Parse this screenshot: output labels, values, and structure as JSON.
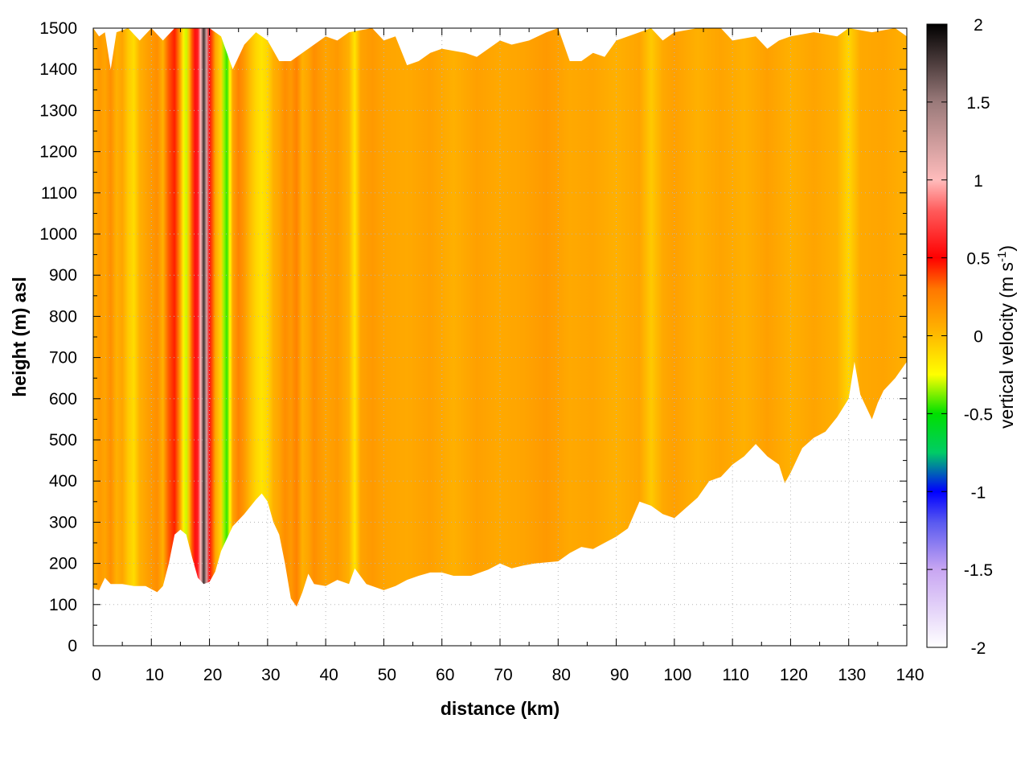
{
  "chart_data": {
    "type": "heatmap",
    "title": "",
    "xlabel": "distance (km)",
    "ylabel": "height (m) asl",
    "xlim": [
      0,
      140
    ],
    "ylim": [
      0,
      1500
    ],
    "x_ticks": [
      "0",
      "10",
      "20",
      "30",
      "40",
      "50",
      "60",
      "70",
      "80",
      "90",
      "100",
      "110",
      "120",
      "130",
      "140"
    ],
    "y_ticks": [
      "0",
      "100",
      "200",
      "300",
      "400",
      "500",
      "600",
      "700",
      "800",
      "900",
      "1000",
      "1100",
      "1200",
      "1300",
      "1400",
      "1500"
    ],
    "grid": true,
    "colorbar": {
      "label_main": "vertical velocity (m s",
      "label_exp": "-1",
      "label_close": ")",
      "range": [
        -2,
        2
      ],
      "ticks": [
        "2",
        "1.5",
        "1",
        "0.5",
        "0",
        "-0.5",
        "-1",
        "-1.5",
        "-2"
      ],
      "colors": [
        {
          "v": -2.0,
          "c": "#ffffff"
        },
        {
          "v": -1.5,
          "c": "#c8a6f2"
        },
        {
          "v": -1.2,
          "c": "#5a5af0"
        },
        {
          "v": -1.0,
          "c": "#0000ff"
        },
        {
          "v": -0.75,
          "c": "#00cc66"
        },
        {
          "v": -0.5,
          "c": "#00e000"
        },
        {
          "v": -0.25,
          "c": "#ffff00"
        },
        {
          "v": 0.0,
          "c": "#ffbb00"
        },
        {
          "v": 0.3,
          "c": "#ff7700"
        },
        {
          "v": 0.5,
          "c": "#ff0000"
        },
        {
          "v": 0.8,
          "c": "#ff5a5a"
        },
        {
          "v": 1.0,
          "c": "#ffbcbc"
        },
        {
          "v": 1.5,
          "c": "#9a7a7a"
        },
        {
          "v": 2.0,
          "c": "#000000"
        }
      ]
    },
    "field": {
      "lower_boundary": [
        [
          0,
          140
        ],
        [
          1,
          135
        ],
        [
          2,
          165
        ],
        [
          3,
          150
        ],
        [
          5,
          150
        ],
        [
          7,
          145
        ],
        [
          9,
          145
        ],
        [
          11,
          130
        ],
        [
          12,
          145
        ],
        [
          13,
          200
        ],
        [
          14,
          270
        ],
        [
          15,
          282
        ],
        [
          16,
          270
        ],
        [
          17,
          215
        ],
        [
          18,
          165
        ],
        [
          19,
          150
        ],
        [
          20,
          155
        ],
        [
          21,
          180
        ],
        [
          22,
          230
        ],
        [
          24,
          290
        ],
        [
          26,
          320
        ],
        [
          28,
          355
        ],
        [
          29,
          370
        ],
        [
          30,
          350
        ],
        [
          31,
          300
        ],
        [
          32,
          270
        ],
        [
          33,
          200
        ],
        [
          34,
          115
        ],
        [
          35,
          95
        ],
        [
          36,
          130
        ],
        [
          37,
          175
        ],
        [
          38,
          150
        ],
        [
          40,
          145
        ],
        [
          42,
          160
        ],
        [
          44,
          150
        ],
        [
          45,
          188
        ],
        [
          47,
          150
        ],
        [
          50,
          135
        ],
        [
          52,
          145
        ],
        [
          54,
          160
        ],
        [
          56,
          170
        ],
        [
          58,
          178
        ],
        [
          60,
          178
        ],
        [
          62,
          170
        ],
        [
          65,
          170
        ],
        [
          68,
          185
        ],
        [
          70,
          200
        ],
        [
          72,
          188
        ],
        [
          74,
          195
        ],
        [
          76,
          200
        ],
        [
          80,
          205
        ],
        [
          82,
          225
        ],
        [
          84,
          240
        ],
        [
          86,
          235
        ],
        [
          88,
          250
        ],
        [
          90,
          265
        ],
        [
          92,
          285
        ],
        [
          94,
          350
        ],
        [
          96,
          340
        ],
        [
          98,
          320
        ],
        [
          100,
          310
        ],
        [
          102,
          335
        ],
        [
          104,
          360
        ],
        [
          106,
          400
        ],
        [
          108,
          410
        ],
        [
          110,
          440
        ],
        [
          112,
          460
        ],
        [
          114,
          490
        ],
        [
          116,
          460
        ],
        [
          118,
          440
        ],
        [
          119,
          395
        ],
        [
          120,
          420
        ],
        [
          122,
          480
        ],
        [
          124,
          505
        ],
        [
          126,
          520
        ],
        [
          128,
          555
        ],
        [
          130,
          600
        ],
        [
          131,
          690
        ],
        [
          132,
          610
        ],
        [
          133,
          580
        ],
        [
          134,
          550
        ],
        [
          135,
          590
        ],
        [
          136,
          620
        ],
        [
          138,
          650
        ],
        [
          140,
          690
        ]
      ],
      "upper_boundary": [
        [
          0,
          1500
        ],
        [
          1,
          1480
        ],
        [
          2,
          1490
        ],
        [
          3,
          1400
        ],
        [
          4,
          1490
        ],
        [
          6,
          1500
        ],
        [
          8,
          1470
        ],
        [
          10,
          1500
        ],
        [
          12,
          1470
        ],
        [
          14,
          1500
        ],
        [
          18,
          1500
        ],
        [
          20,
          1500
        ],
        [
          22,
          1480
        ],
        [
          24,
          1400
        ],
        [
          26,
          1460
        ],
        [
          28,
          1490
        ],
        [
          30,
          1470
        ],
        [
          32,
          1420
        ],
        [
          34,
          1420
        ],
        [
          36,
          1440
        ],
        [
          38,
          1460
        ],
        [
          40,
          1480
        ],
        [
          42,
          1470
        ],
        [
          44,
          1490
        ],
        [
          48,
          1500
        ],
        [
          50,
          1470
        ],
        [
          52,
          1480
        ],
        [
          54,
          1410
        ],
        [
          56,
          1420
        ],
        [
          58,
          1440
        ],
        [
          60,
          1450
        ],
        [
          64,
          1440
        ],
        [
          66,
          1430
        ],
        [
          68,
          1450
        ],
        [
          70,
          1470
        ],
        [
          72,
          1460
        ],
        [
          75,
          1470
        ],
        [
          78,
          1490
        ],
        [
          80,
          1500
        ],
        [
          82,
          1420
        ],
        [
          84,
          1420
        ],
        [
          86,
          1440
        ],
        [
          88,
          1430
        ],
        [
          90,
          1470
        ],
        [
          94,
          1490
        ],
        [
          96,
          1500
        ],
        [
          98,
          1470
        ],
        [
          100,
          1490
        ],
        [
          104,
          1500
        ],
        [
          108,
          1500
        ],
        [
          110,
          1470
        ],
        [
          114,
          1480
        ],
        [
          116,
          1450
        ],
        [
          118,
          1470
        ],
        [
          120,
          1480
        ],
        [
          124,
          1490
        ],
        [
          128,
          1480
        ],
        [
          130,
          1500
        ],
        [
          134,
          1490
        ],
        [
          138,
          1500
        ],
        [
          140,
          1480
        ]
      ],
      "columns": [
        [
          0,
          0.05
        ],
        [
          1,
          0.15
        ],
        [
          2,
          0.1
        ],
        [
          3,
          0.2
        ],
        [
          4,
          0.05
        ],
        [
          5,
          0.1
        ],
        [
          6,
          -0.05
        ],
        [
          7,
          -0.12
        ],
        [
          8,
          0.05
        ],
        [
          9,
          0.1
        ],
        [
          10,
          0.15
        ],
        [
          11,
          0.2
        ],
        [
          12,
          0.05
        ],
        [
          13,
          0.35
        ],
        [
          14,
          0.45
        ],
        [
          15,
          0.1
        ],
        [
          15.5,
          -0.2
        ],
        [
          16,
          -0.3
        ],
        [
          16.5,
          0.0
        ],
        [
          17,
          0.35
        ],
        [
          17.5,
          0.55
        ],
        [
          18,
          0.6
        ],
        [
          18.5,
          1.0
        ],
        [
          19,
          1.8
        ],
        [
          19.5,
          1.2
        ],
        [
          20,
          0.55
        ],
        [
          20.5,
          0.35
        ],
        [
          21,
          0.1
        ],
        [
          22,
          -0.1
        ],
        [
          22.5,
          -0.35
        ],
        [
          23,
          -0.45
        ],
        [
          23.5,
          -0.25
        ],
        [
          24,
          0.1
        ],
        [
          25,
          0.25
        ],
        [
          26,
          0.15
        ],
        [
          27,
          0.0
        ],
        [
          28,
          -0.1
        ],
        [
          29,
          -0.15
        ],
        [
          30,
          -0.1
        ],
        [
          31,
          0.05
        ],
        [
          32,
          0.1
        ],
        [
          33,
          0.2
        ],
        [
          34,
          0.15
        ],
        [
          35,
          0.25
        ],
        [
          36,
          0.05
        ],
        [
          37,
          0.1
        ],
        [
          38,
          0.2
        ],
        [
          40,
          0.1
        ],
        [
          42,
          0.15
        ],
        [
          44,
          0.05
        ],
        [
          45,
          -0.15
        ],
        [
          46,
          0.1
        ],
        [
          48,
          0.15
        ],
        [
          50,
          0.1
        ],
        [
          54,
          0.08
        ],
        [
          58,
          0.12
        ],
        [
          62,
          0.05
        ],
        [
          66,
          0.12
        ],
        [
          70,
          0.08
        ],
        [
          74,
          0.1
        ],
        [
          78,
          0.15
        ],
        [
          82,
          0.08
        ],
        [
          86,
          0.1
        ],
        [
          90,
          0.05
        ],
        [
          94,
          0.1
        ],
        [
          96,
          -0.05
        ],
        [
          98,
          0.08
        ],
        [
          100,
          0.12
        ],
        [
          104,
          0.05
        ],
        [
          108,
          0.1
        ],
        [
          112,
          0.05
        ],
        [
          116,
          0.12
        ],
        [
          120,
          0.05
        ],
        [
          124,
          0.1
        ],
        [
          128,
          0.05
        ],
        [
          130,
          -0.1
        ],
        [
          132,
          0.08
        ],
        [
          136,
          0.1
        ],
        [
          140,
          0.05
        ]
      ]
    }
  }
}
